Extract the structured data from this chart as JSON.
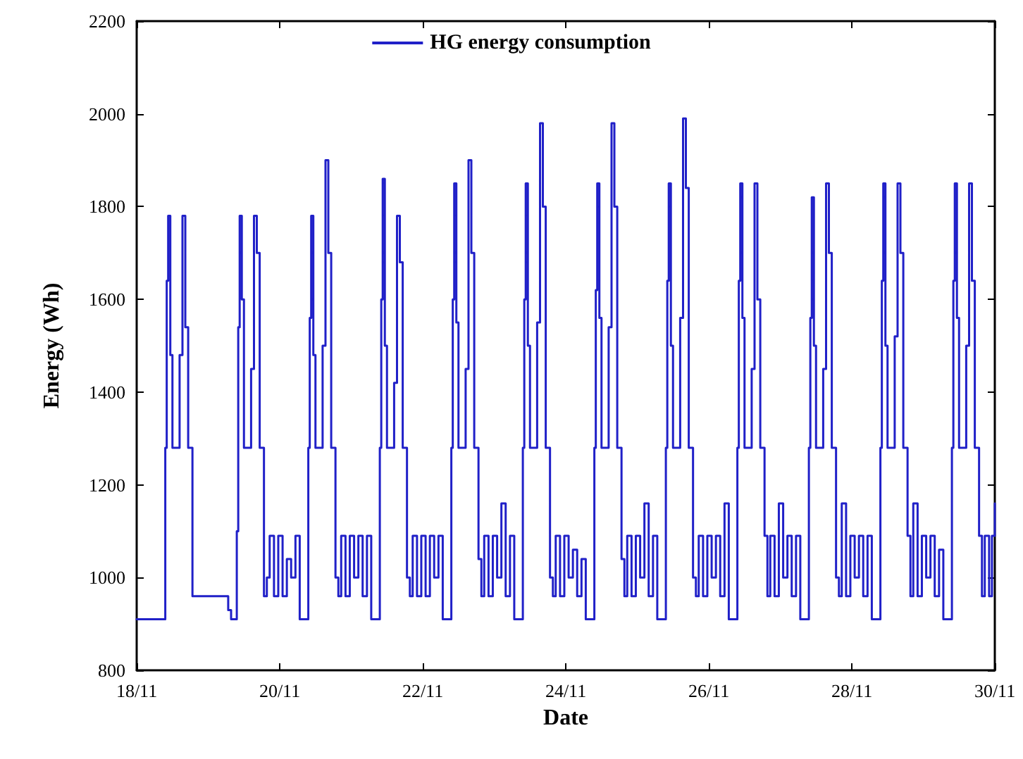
{
  "chart_data": {
    "type": "step",
    "xlabel": "Date",
    "ylabel": "Energy (Wh)",
    "xlim": [
      "--11-18",
      "--11-30"
    ],
    "xticks": [
      {
        "value": "--11-18",
        "label": "18/11"
      },
      {
        "value": "--11-20",
        "label": "20/11"
      },
      {
        "value": "--11-22",
        "label": "22/11"
      },
      {
        "value": "--11-24",
        "label": "24/11"
      },
      {
        "value": "--11-26",
        "label": "26/11"
      },
      {
        "value": "--11-28",
        "label": "28/11"
      },
      {
        "value": "--11-30",
        "label": "30/11"
      }
    ],
    "ylim": [
      800,
      2200
    ],
    "yticks": [
      800,
      1000,
      1200,
      1400,
      1600,
      1800,
      2000,
      2200
    ],
    "grid": false,
    "legend": "top",
    "marker": "none",
    "line_style": "solid",
    "series": [
      {
        "name": "HG energy consumption",
        "color": "#2020c8",
        "x": [
          "--11-18T00:00",
          "--11-18T09:36",
          "--11-18T10:05",
          "--11-18T10:34",
          "--11-18T11:17",
          "--11-18T12:00",
          "--11-18T14:24",
          "--11-18T15:22",
          "--11-18T16:19",
          "--11-18T17:17",
          "--11-18T18:43",
          "--11-19T06:43",
          "--11-19T07:41",
          "--11-19T09:36",
          "--11-19T10:05",
          "--11-19T10:34",
          "--11-19T11:17",
          "--11-19T12:00",
          "--11-19T14:24",
          "--11-19T15:22",
          "--11-19T16:19",
          "--11-19T17:17",
          "--11-19T18:43",
          "--11-19T19:41",
          "--11-19T20:38",
          "--11-19T22:05",
          "--11-19T23:31",
          "--11-20T00:58",
          "--11-20T02:24",
          "--11-20T03:50",
          "--11-20T05:17",
          "--11-20T06:43",
          "--11-20T09:36",
          "--11-20T10:05",
          "--11-20T10:34",
          "--11-20T11:17",
          "--11-20T12:00",
          "--11-20T14:24",
          "--11-20T15:22",
          "--11-20T16:19",
          "--11-20T17:17",
          "--11-20T18:43",
          "--11-20T19:41",
          "--11-20T20:38",
          "--11-20T22:05",
          "--11-20T23:31",
          "--11-21T00:58",
          "--11-21T02:24",
          "--11-21T03:50",
          "--11-21T05:17",
          "--11-21T06:43",
          "--11-21T09:36",
          "--11-21T10:05",
          "--11-21T10:34",
          "--11-21T11:17",
          "--11-21T12:00",
          "--11-21T14:24",
          "--11-21T15:22",
          "--11-21T16:19",
          "--11-21T17:17",
          "--11-21T18:43",
          "--11-21T19:41",
          "--11-21T20:38",
          "--11-21T22:05",
          "--11-21T23:31",
          "--11-22T00:58",
          "--11-22T02:24",
          "--11-22T03:50",
          "--11-22T05:17",
          "--11-22T06:43",
          "--11-22T09:36",
          "--11-22T10:05",
          "--11-22T10:34",
          "--11-22T11:17",
          "--11-22T12:00",
          "--11-22T14:24",
          "--11-22T15:22",
          "--11-22T16:19",
          "--11-22T17:17",
          "--11-22T18:43",
          "--11-22T19:41",
          "--11-22T20:38",
          "--11-22T22:05",
          "--11-22T23:31",
          "--11-23T00:58",
          "--11-23T02:24",
          "--11-23T03:50",
          "--11-23T05:17",
          "--11-23T06:43",
          "--11-23T09:36",
          "--11-23T10:05",
          "--11-23T10:34",
          "--11-23T11:17",
          "--11-23T12:00",
          "--11-23T14:24",
          "--11-23T15:22",
          "--11-23T16:19",
          "--11-23T17:17",
          "--11-23T18:43",
          "--11-23T19:41",
          "--11-23T20:38",
          "--11-23T22:05",
          "--11-23T23:31",
          "--11-24T00:58",
          "--11-24T02:24",
          "--11-24T03:50",
          "--11-24T05:17",
          "--11-24T06:43",
          "--11-24T09:36",
          "--11-24T10:05",
          "--11-24T10:34",
          "--11-24T11:17",
          "--11-24T12:00",
          "--11-24T14:24",
          "--11-24T15:22",
          "--11-24T16:19",
          "--11-24T17:17",
          "--11-24T18:43",
          "--11-24T19:41",
          "--11-24T20:38",
          "--11-24T22:05",
          "--11-24T23:31",
          "--11-25T00:58",
          "--11-25T02:24",
          "--11-25T03:50",
          "--11-25T05:17",
          "--11-25T06:43",
          "--11-25T09:36",
          "--11-25T10:05",
          "--11-25T10:34",
          "--11-25T11:17",
          "--11-25T12:00",
          "--11-25T14:24",
          "--11-25T15:22",
          "--11-25T16:19",
          "--11-25T17:17",
          "--11-25T18:43",
          "--11-25T19:41",
          "--11-25T20:38",
          "--11-25T22:05",
          "--11-25T23:31",
          "--11-26T00:58",
          "--11-26T02:24",
          "--11-26T03:50",
          "--11-26T05:17",
          "--11-26T06:43",
          "--11-26T09:36",
          "--11-26T10:05",
          "--11-26T10:34",
          "--11-26T11:17",
          "--11-26T12:00",
          "--11-26T14:24",
          "--11-26T15:22",
          "--11-26T16:19",
          "--11-26T17:17",
          "--11-26T18:43",
          "--11-26T19:41",
          "--11-26T20:38",
          "--11-26T22:05",
          "--11-26T23:31",
          "--11-27T00:58",
          "--11-27T02:24",
          "--11-27T03:50",
          "--11-27T05:17",
          "--11-27T06:43",
          "--11-27T09:36",
          "--11-27T10:05",
          "--11-27T10:34",
          "--11-27T11:17",
          "--11-27T12:00",
          "--11-27T14:24",
          "--11-27T15:22",
          "--11-27T16:19",
          "--11-27T17:17",
          "--11-27T18:43",
          "--11-27T19:41",
          "--11-27T20:38",
          "--11-27T22:05",
          "--11-27T23:31",
          "--11-28T00:58",
          "--11-28T02:24",
          "--11-28T03:50",
          "--11-28T05:17",
          "--11-28T06:43",
          "--11-28T09:36",
          "--11-28T10:05",
          "--11-28T10:34",
          "--11-28T11:17",
          "--11-28T12:00",
          "--11-28T14:24",
          "--11-28T15:22",
          "--11-28T16:19",
          "--11-28T17:17",
          "--11-28T18:43",
          "--11-28T19:41",
          "--11-28T20:38",
          "--11-28T22:05",
          "--11-28T23:31",
          "--11-29T00:58",
          "--11-29T02:24",
          "--11-29T03:50",
          "--11-29T05:17",
          "--11-29T06:43",
          "--11-29T09:36",
          "--11-29T10:05",
          "--11-29T10:34",
          "--11-29T11:17",
          "--11-29T12:00",
          "--11-29T14:24",
          "--11-29T15:22",
          "--11-29T16:19",
          "--11-29T17:17",
          "--11-29T18:43",
          "--11-29T19:41",
          "--11-29T20:38",
          "--11-29T22:05",
          "--11-29T23:02",
          "--11-30T00:00"
        ],
        "values": [
          910,
          1280,
          1640,
          1780,
          1480,
          1280,
          1480,
          1780,
          1540,
          1280,
          960,
          930,
          910,
          1100,
          1540,
          1780,
          1600,
          1280,
          1450,
          1780,
          1700,
          1280,
          960,
          1000,
          1090,
          960,
          1090,
          960,
          1040,
          1000,
          1090,
          910,
          1280,
          1560,
          1780,
          1480,
          1280,
          1500,
          1900,
          1700,
          1280,
          1000,
          960,
          1090,
          960,
          1090,
          1000,
          1090,
          960,
          1090,
          910,
          1280,
          1600,
          1860,
          1500,
          1280,
          1420,
          1780,
          1680,
          1280,
          1000,
          960,
          1090,
          960,
          1090,
          960,
          1090,
          1000,
          1090,
          910,
          1280,
          1600,
          1850,
          1550,
          1280,
          1450,
          1900,
          1700,
          1280,
          1040,
          960,
          1090,
          960,
          1090,
          1000,
          1160,
          960,
          1090,
          910,
          1280,
          1600,
          1850,
          1500,
          1280,
          1550,
          1980,
          1800,
          1280,
          1000,
          960,
          1090,
          960,
          1090,
          1000,
          1060,
          960,
          1040,
          910,
          1280,
          1620,
          1850,
          1560,
          1280,
          1540,
          1980,
          1800,
          1280,
          1040,
          960,
          1090,
          960,
          1090,
          1000,
          1160,
          960,
          1090,
          910,
          1280,
          1640,
          1850,
          1500,
          1280,
          1560,
          1990,
          1840,
          1280,
          1000,
          960,
          1090,
          960,
          1090,
          1000,
          1090,
          960,
          1160,
          910,
          1280,
          1640,
          1850,
          1560,
          1280,
          1450,
          1850,
          1600,
          1280,
          1090,
          960,
          1090,
          960,
          1160,
          1000,
          1090,
          960,
          1090,
          910,
          1280,
          1560,
          1820,
          1500,
          1280,
          1450,
          1850,
          1700,
          1280,
          1000,
          960,
          1160,
          960,
          1090,
          1000,
          1090,
          960,
          1090,
          910,
          1280,
          1640,
          1850,
          1500,
          1280,
          1520,
          1850,
          1700,
          1280,
          1090,
          960,
          1160,
          960,
          1090,
          1000,
          1090,
          960,
          1060,
          910,
          1280,
          1640,
          1850,
          1560,
          1280,
          1500,
          1850,
          1640,
          1280,
          1090,
          960,
          1090,
          960,
          1090,
          1160
        ]
      }
    ]
  }
}
